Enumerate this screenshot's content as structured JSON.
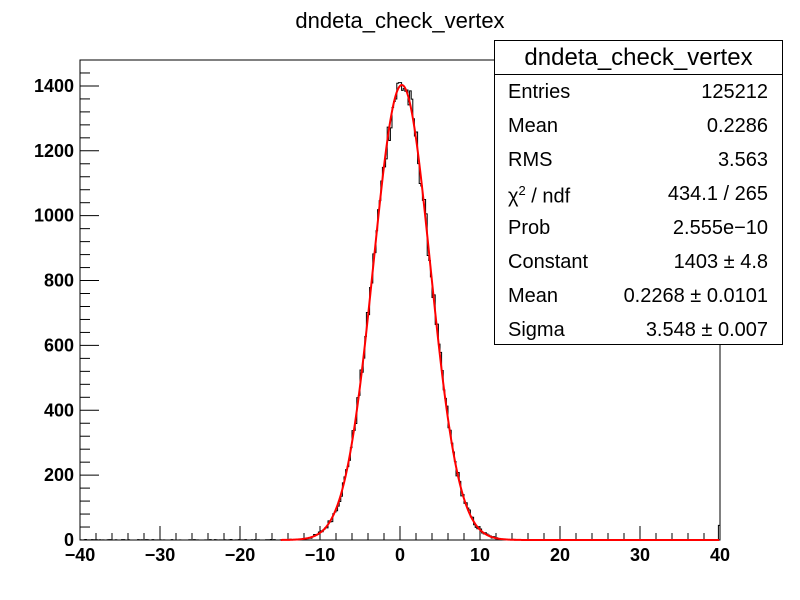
{
  "chart_data": {
    "type": "histogram",
    "title": "dndeta_check_vertex",
    "xlabel": "",
    "ylabel": "",
    "xlim": [
      -40,
      40
    ],
    "ylim": [
      0,
      1480
    ],
    "x_ticks": [
      "−40",
      "−30",
      "−20",
      "−10",
      "0",
      "10",
      "20",
      "30",
      "40"
    ],
    "y_ticks": [
      "0",
      "200",
      "400",
      "600",
      "800",
      "1000",
      "1200",
      "1400"
    ],
    "histogram": {
      "x_range": [
        -40,
        40
      ],
      "bins": 400,
      "sample_bins": [
        {
          "x": -15,
          "y": 2
        },
        {
          "x": -12,
          "y": 5
        },
        {
          "x": -10,
          "y": 25
        },
        {
          "x": -8,
          "y": 110
        },
        {
          "x": -6,
          "y": 330
        },
        {
          "x": -4,
          "y": 700
        },
        {
          "x": -2,
          "y": 1140
        },
        {
          "x": -1,
          "y": 1320
        },
        {
          "x": 0,
          "y": 1385
        },
        {
          "x": 0.5,
          "y": 1405
        },
        {
          "x": 1,
          "y": 1370
        },
        {
          "x": 2,
          "y": 1210
        },
        {
          "x": 4,
          "y": 760
        },
        {
          "x": 6,
          "y": 360
        },
        {
          "x": 8,
          "y": 115
        },
        {
          "x": 10,
          "y": 28
        },
        {
          "x": 12,
          "y": 6
        },
        {
          "x": 15,
          "y": 1
        },
        {
          "x": 40,
          "y": 45
        }
      ]
    },
    "fit": {
      "function": "gaus",
      "constant": 1403,
      "mean": 0.2268,
      "sigma": 3.548,
      "color": "#ff0000"
    },
    "line_color": "#000000"
  },
  "stats_box": {
    "title": "dndeta_check_vertex",
    "rows": [
      {
        "name": "Entries",
        "value": "125212"
      },
      {
        "name": "Mean",
        "value": "0.2286"
      },
      {
        "name": "RMS",
        "value": "3.563"
      },
      {
        "name": "χ",
        "sup": "2",
        "name_rest": " / ndf",
        "value": "434.1 / 265"
      },
      {
        "name": "Prob",
        "value": "2.555e−10"
      },
      {
        "name": "Constant",
        "value": "1403 ± 4.8"
      },
      {
        "name": "Mean",
        "value": "0.2268 ± 0.0101"
      },
      {
        "name": "Sigma",
        "value": "3.548 ± 0.007"
      }
    ]
  }
}
